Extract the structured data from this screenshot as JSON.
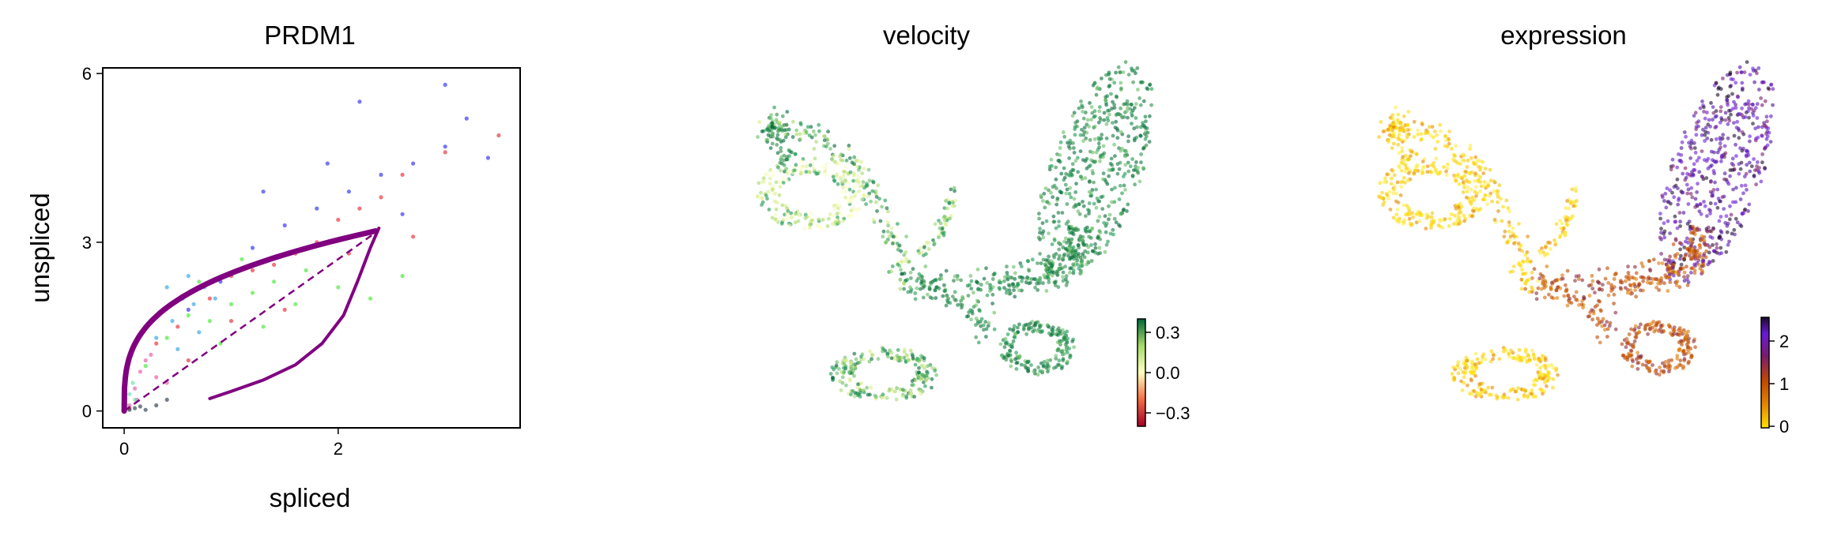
{
  "chart_data": [
    {
      "type": "scatter",
      "title": "PRDM1",
      "xlabel": "spliced",
      "ylabel": "unspliced",
      "xlim": [
        -0.2,
        3.7
      ],
      "ylim": [
        -0.3,
        6.1
      ],
      "xticks": [
        "0",
        "2"
      ],
      "yticks": [
        "0",
        "3",
        "6"
      ],
      "grid": false,
      "series": [
        {
          "points": [
            [
              0.05,
              0.05
            ],
            [
              0.3,
              1.2
            ],
            [
              0.5,
              1.5
            ],
            [
              0.8,
              2.0
            ],
            [
              1.0,
              2.4
            ],
            [
              1.2,
              2.5
            ],
            [
              1.4,
              2.6
            ],
            [
              1.6,
              2.8
            ],
            [
              1.8,
              3.0
            ],
            [
              2.0,
              3.4
            ],
            [
              2.2,
              3.6
            ],
            [
              2.4,
              3.8
            ],
            [
              2.6,
              4.2
            ],
            [
              3.0,
              4.6
            ],
            [
              0.6,
              0.9
            ],
            [
              1.0,
              1.6
            ],
            [
              1.5,
              1.8
            ],
            [
              2.1,
              2.8
            ],
            [
              2.7,
              3.1
            ],
            [
              3.5,
              4.9
            ]
          ],
          "color": "#e6191f"
        },
        {
          "points": [
            [
              0.6,
              1.8
            ],
            [
              0.9,
              2.3
            ],
            [
              1.2,
              2.9
            ],
            [
              1.5,
              3.3
            ],
            [
              1.8,
              3.6
            ],
            [
              2.1,
              3.9
            ],
            [
              2.4,
              4.2
            ],
            [
              2.7,
              4.4
            ],
            [
              3.0,
              4.7
            ],
            [
              3.2,
              5.2
            ],
            [
              3.0,
              5.8
            ],
            [
              2.2,
              5.5
            ],
            [
              1.3,
              3.9
            ],
            [
              1.9,
              4.4
            ],
            [
              2.6,
              3.5
            ],
            [
              3.4,
              4.5
            ]
          ],
          "color": "#1a1aee"
        },
        {
          "points": [
            [
              0.2,
              0.8
            ],
            [
              0.4,
              1.3
            ],
            [
              0.6,
              1.7
            ],
            [
              0.8,
              1.6
            ],
            [
              1.0,
              1.9
            ],
            [
              1.2,
              2.1
            ],
            [
              1.4,
              2.3
            ],
            [
              1.7,
              2.5
            ],
            [
              0.9,
              1.2
            ],
            [
              1.3,
              1.5
            ],
            [
              2.0,
              2.2
            ],
            [
              2.3,
              2.0
            ],
            [
              1.6,
              1.9
            ],
            [
              0.7,
              2.3
            ],
            [
              1.1,
              2.7
            ],
            [
              2.6,
              2.4
            ]
          ],
          "color": "#33e622"
        },
        {
          "points": [
            [
              0.3,
              1.3
            ],
            [
              0.45,
              1.6
            ],
            [
              0.55,
              2.0
            ],
            [
              0.65,
              1.9
            ],
            [
              0.75,
              2.2
            ],
            [
              0.4,
              2.2
            ],
            [
              0.6,
              2.4
            ],
            [
              0.85,
              2.0
            ],
            [
              0.5,
              1.1
            ],
            [
              0.7,
              1.4
            ]
          ],
          "color": "#1e9ce6"
        },
        {
          "points": [
            [
              0.05,
              0.1
            ],
            [
              0.1,
              0.4
            ],
            [
              0.15,
              0.7
            ],
            [
              0.2,
              0.9
            ],
            [
              0.3,
              0.6
            ],
            [
              0.25,
              1.0
            ],
            [
              0.12,
              0.2
            ],
            [
              0.4,
              0.5
            ]
          ],
          "color": "#e64a9c"
        },
        {
          "points": [
            [
              0.05,
              0.02
            ],
            [
              0.1,
              0.05
            ],
            [
              0.15,
              0.08
            ],
            [
              0.2,
              0.02
            ],
            [
              0.3,
              0.1
            ],
            [
              0.4,
              0.2
            ]
          ],
          "color": "#1b2b3a"
        },
        {
          "points": [
            [
              0.02,
              0.1
            ],
            [
              0.05,
              0.3
            ],
            [
              0.08,
              0.5
            ],
            [
              0.1,
              0.2
            ]
          ],
          "color": "#5ee0a0"
        }
      ],
      "fit_color": "#800080",
      "steady_state_slope": 1.35
    },
    {
      "type": "scatter",
      "title": "velocity",
      "colorbar": {
        "ticks": [
          "0.3",
          "0.0",
          "−0.3"
        ],
        "range": [
          -0.4,
          0.4
        ],
        "colors": [
          "#a50026",
          "#f46d43",
          "#ffffbf",
          "#a6d96a",
          "#006837"
        ]
      }
    },
    {
      "type": "scatter",
      "title": "expression",
      "colorbar": {
        "ticks": [
          "2",
          "1",
          "0"
        ],
        "range": [
          0,
          2.6
        ],
        "colors": [
          "#ffe100",
          "#e58a00",
          "#c24a00",
          "#7a1b6e",
          "#6a1ad6",
          "#1a0a2a"
        ]
      }
    }
  ]
}
